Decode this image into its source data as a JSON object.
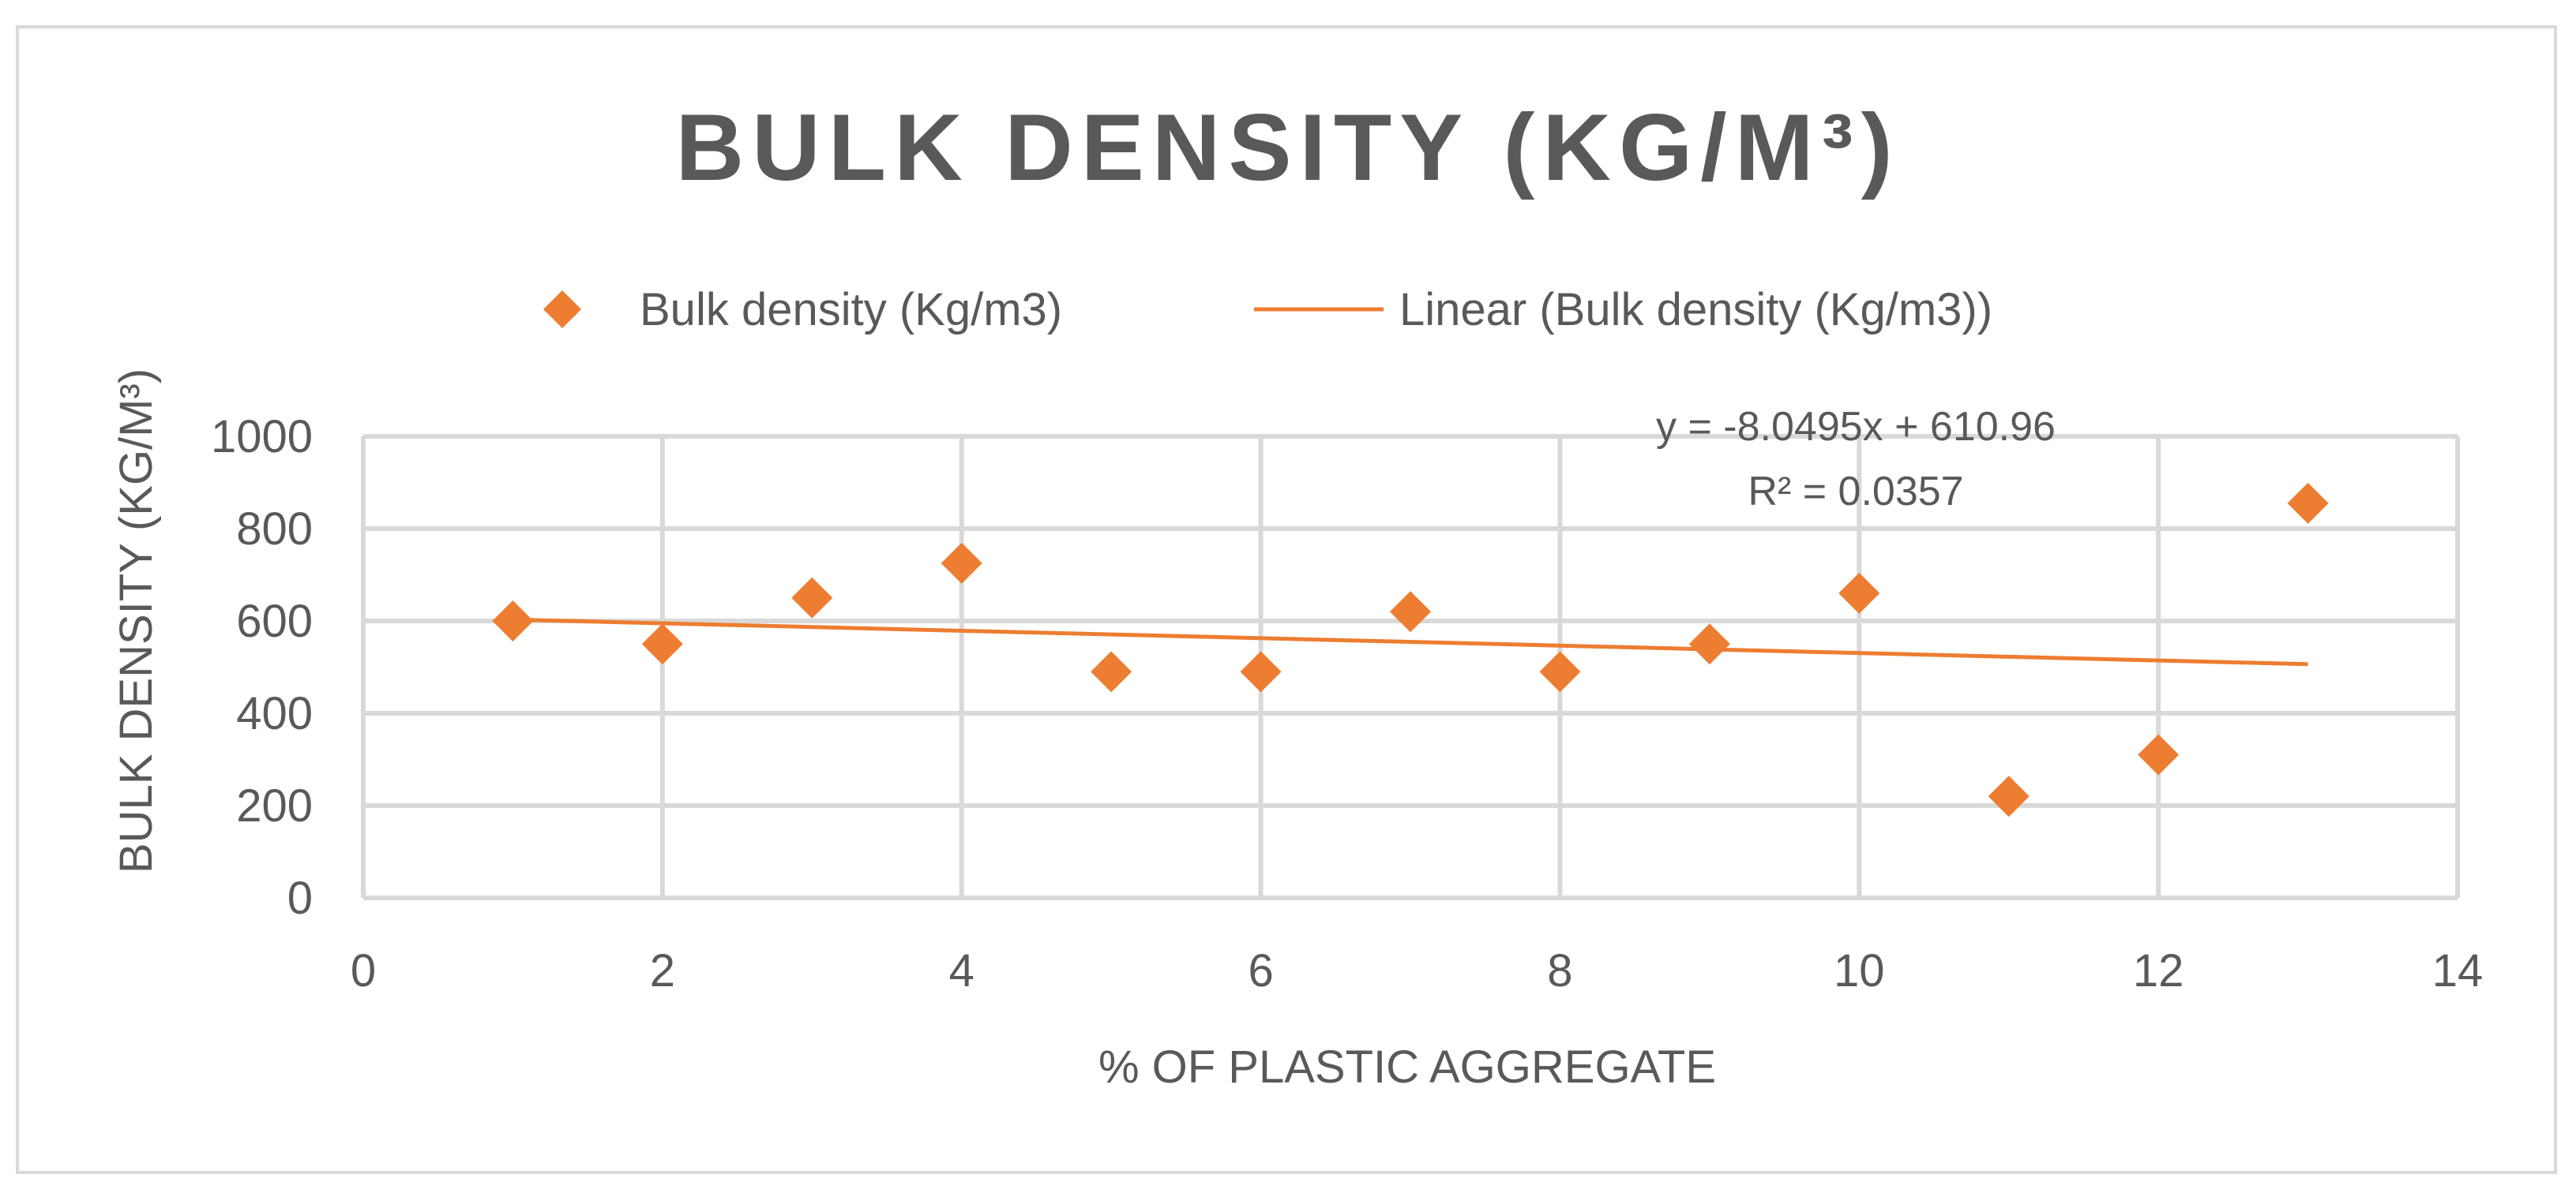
{
  "chart_data": {
    "type": "scatter",
    "title": "BULK DENSITY (KG/M³)",
    "xlabel": "% OF PLASTIC AGGREGATE",
    "ylabel": "BULK DENSITY (KG/M³)",
    "xlim": [
      0,
      14
    ],
    "ylim": [
      0,
      1000
    ],
    "x_ticks": [
      0,
      2,
      4,
      6,
      8,
      10,
      12,
      14
    ],
    "y_ticks": [
      0,
      200,
      400,
      600,
      800,
      1000
    ],
    "grid": true,
    "legend_position": "top",
    "series": [
      {
        "name": "Bulk density (Kg/m3)",
        "marker": "diamond",
        "color": "#ed7d31",
        "x": [
          1,
          2,
          3,
          4,
          5,
          6,
          7,
          8,
          9,
          10,
          11,
          12,
          13
        ],
        "y": [
          600,
          550,
          650,
          725,
          490,
          490,
          620,
          490,
          550,
          660,
          220,
          310,
          855
        ]
      }
    ],
    "trendline": {
      "name": "Linear (Bulk density (Kg/m3))",
      "type": "linear",
      "color": "#ed7d31",
      "slope": -8.0495,
      "intercept": 610.96,
      "x_range": [
        1,
        13
      ],
      "equation": "y = -8.0495x + 610.96",
      "r_squared": "R² = 0.0357"
    }
  }
}
